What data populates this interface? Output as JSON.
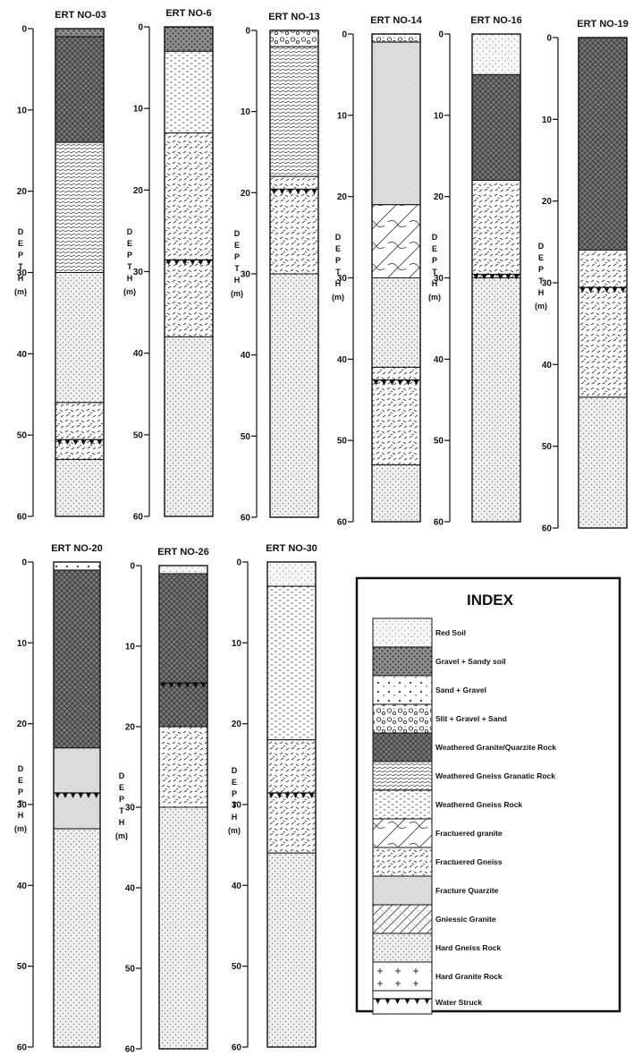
{
  "diagram": {
    "depth_label_letters": [
      "D",
      "E",
      "P",
      "T",
      "H"
    ],
    "depth_unit": "(m)",
    "tick_values": [
      0,
      10,
      20,
      30,
      40,
      50,
      60
    ],
    "logs": [
      {
        "title": "ERT NO-03",
        "layers": [
          [
            0,
            1,
            "gravel_sandy_soil"
          ],
          [
            1,
            14,
            "weathered_granite_quartzite"
          ],
          [
            14,
            30,
            "weathered_gneiss_granatic"
          ],
          [
            30,
            46,
            "hard_gneiss"
          ],
          [
            46,
            53,
            "fractured_gneiss"
          ],
          [
            53,
            60,
            "hard_gneiss"
          ]
        ],
        "water": 51
      },
      {
        "title": "ERT NO-6",
        "layers": [
          [
            0,
            3,
            "gravel_sandy_soil"
          ],
          [
            3,
            13,
            "weathered_gneiss"
          ],
          [
            13,
            38,
            "fractured_gneiss"
          ],
          [
            38,
            60,
            "hard_gneiss"
          ]
        ],
        "water": 29
      },
      {
        "title": "ERT NO-13",
        "layers": [
          [
            0,
            2,
            "slit_gravel_sand"
          ],
          [
            2,
            18,
            "weathered_gneiss_granatic"
          ],
          [
            18,
            30,
            "fractured_gneiss"
          ],
          [
            30,
            60,
            "hard_gneiss"
          ]
        ],
        "water": 20
      },
      {
        "title": "ERT NO-14",
        "layers": [
          [
            0,
            1,
            "slit_gravel_sand"
          ],
          [
            1,
            21,
            "fracture_quartzite"
          ],
          [
            21,
            30,
            "fractured_granite"
          ],
          [
            30,
            41,
            "hard_gneiss"
          ],
          [
            41,
            53,
            "fractured_gneiss"
          ],
          [
            53,
            60,
            "hard_gneiss"
          ]
        ],
        "water": 43
      },
      {
        "title": "ERT NO-16",
        "layers": [
          [
            0,
            5,
            "red_soil"
          ],
          [
            5,
            18,
            "weathered_granite_quartzite"
          ],
          [
            18,
            30,
            "fractured_gneiss"
          ],
          [
            30,
            60,
            "hard_gneiss"
          ]
        ],
        "water": 30
      },
      {
        "title": "ERT NO-19",
        "layers": [
          [
            0,
            26,
            "weathered_granite_quartzite"
          ],
          [
            26,
            44,
            "fractured_gneiss"
          ],
          [
            44,
            60,
            "hard_gneiss"
          ]
        ],
        "water": 31
      },
      {
        "title": "ERT NO-20",
        "layers": [
          [
            0,
            1,
            "sand_gravel"
          ],
          [
            1,
            23,
            "weathered_granite_quartzite"
          ],
          [
            23,
            33,
            "fracture_quartzite"
          ],
          [
            33,
            60,
            "hard_gneiss"
          ]
        ],
        "water": 29
      },
      {
        "title": "ERT NO-26",
        "layers": [
          [
            0,
            1,
            "red_soil"
          ],
          [
            1,
            20,
            "weathered_granite_quartzite"
          ],
          [
            20,
            30,
            "fractured_gneiss"
          ],
          [
            30,
            60,
            "hard_gneiss"
          ]
        ],
        "water": 15
      },
      {
        "title": "ERT NO-30",
        "layers": [
          [
            0,
            3,
            "red_soil"
          ],
          [
            3,
            22,
            "weathered_gneiss"
          ],
          [
            22,
            36,
            "fractured_gneiss"
          ],
          [
            36,
            60,
            "hard_gneiss"
          ]
        ],
        "water": 29
      }
    ],
    "index": {
      "title": "INDEX",
      "items": [
        {
          "key": "red_soil",
          "label": "Red Soil"
        },
        {
          "key": "gravel_sandy_soil",
          "label": "Gravel + Sandy soil"
        },
        {
          "key": "sand_gravel",
          "label": "Sand + Gravel"
        },
        {
          "key": "slit_gravel_sand",
          "label": "Slit + Gravel + Sand"
        },
        {
          "key": "weathered_granite_quartzite",
          "label": "Weathered Granite/Quarzite Rock"
        },
        {
          "key": "weathered_gneiss_granatic",
          "label": "Weathered Gneiss Granatic Rock"
        },
        {
          "key": "weathered_gneiss",
          "label": "Weathered Gneiss Rock"
        },
        {
          "key": "fractured_granite",
          "label": "Fractuered granite"
        },
        {
          "key": "fractured_gneiss",
          "label": "Fractuered Gneiss"
        },
        {
          "key": "fracture_quartzite",
          "label": "Fracture Quarzite"
        },
        {
          "key": "gneissic_granite",
          "label": "Gniessic Granite"
        },
        {
          "key": "hard_gneiss",
          "label": "Hard Gneiss Rock"
        },
        {
          "key": "hard_granite",
          "label": "Hard Granite Rock"
        },
        {
          "key": "water_struck",
          "label": "Water Struck"
        }
      ]
    }
  }
}
